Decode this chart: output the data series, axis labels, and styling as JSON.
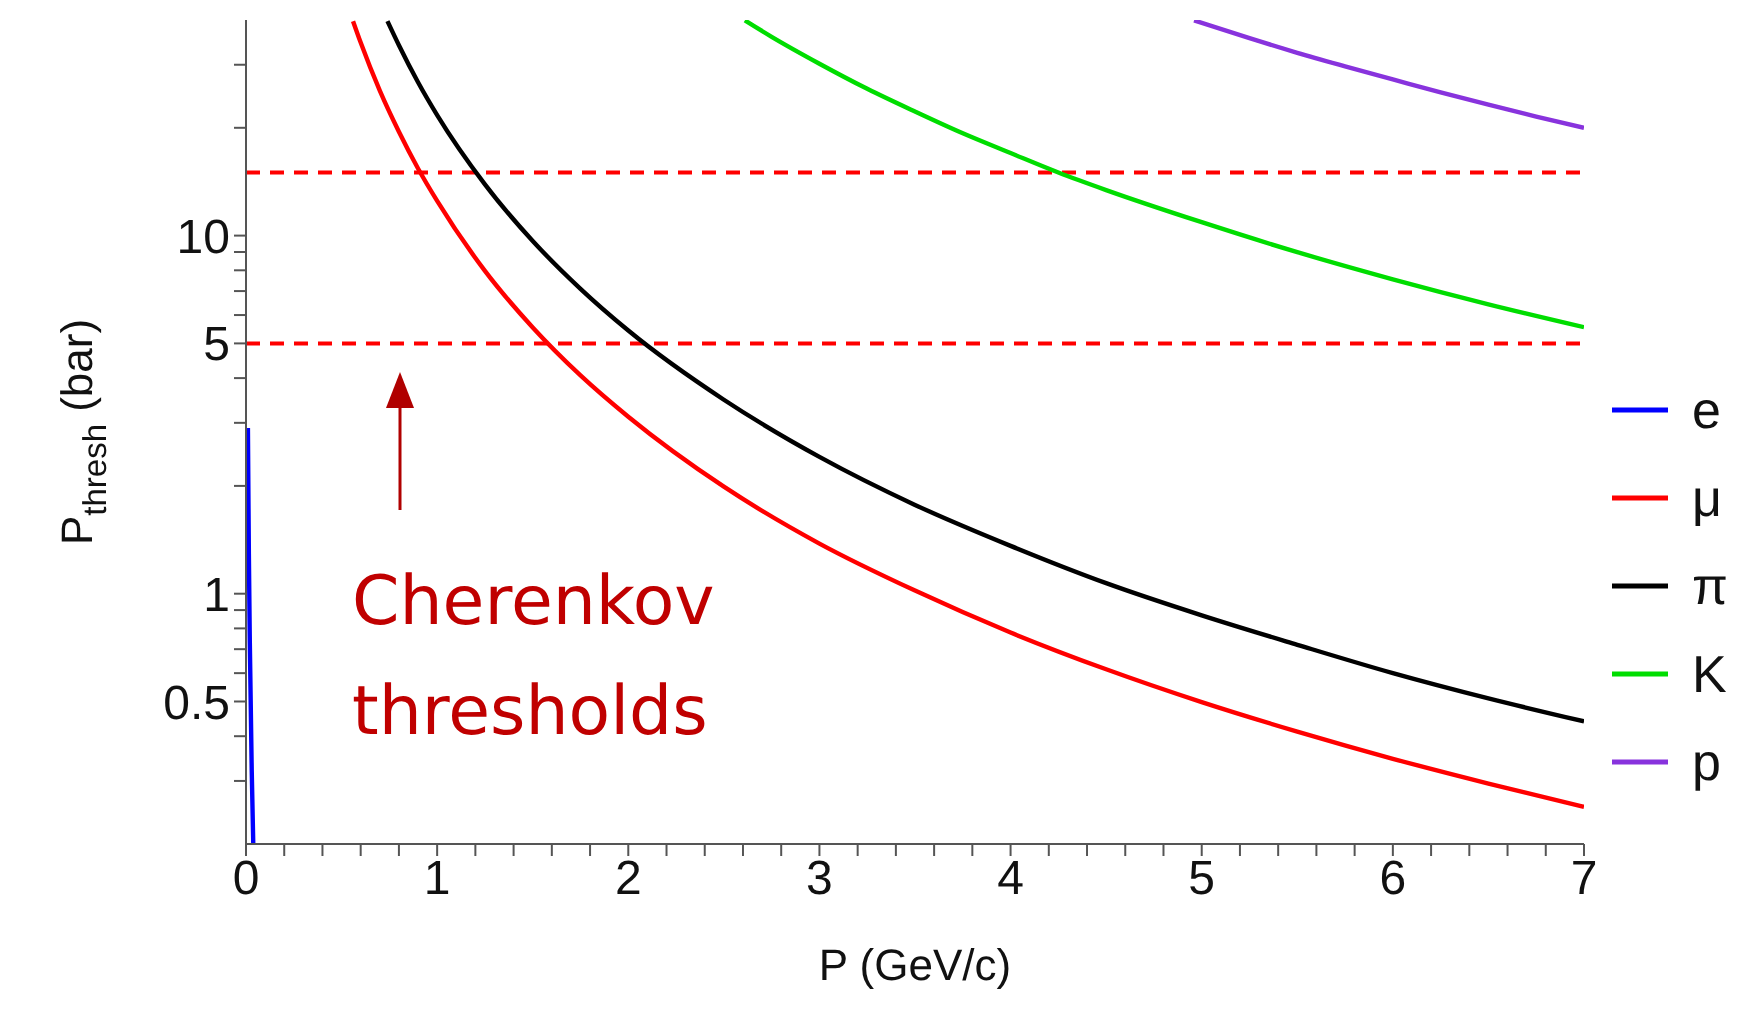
{
  "chart_data": {
    "type": "line",
    "xlabel": "P (GeV/c)",
    "ylabel": "P$_{thresh}$ (bar)",
    "log": "y",
    "xlim": [
      0,
      7
    ],
    "ylim": [
      0.2,
      40
    ],
    "xticks": [
      0,
      {
        "value": 0.2,
        "label": null
      },
      {
        "value": 0.4,
        "label": null
      },
      {
        "value": 0.6,
        "label": null
      },
      {
        "value": 0.8,
        "label": null
      },
      1,
      {
        "value": 1.2,
        "label": null
      },
      {
        "value": 1.4,
        "label": null
      },
      {
        "value": 1.6,
        "label": null
      },
      {
        "value": 1.8,
        "label": null
      },
      2,
      {
        "value": 2.2,
        "label": null
      },
      {
        "value": 2.4,
        "label": null
      },
      {
        "value": 2.6,
        "label": null
      },
      {
        "value": 2.8,
        "label": null
      },
      3,
      {
        "value": 3.2,
        "label": null
      },
      {
        "value": 3.4,
        "label": null
      },
      {
        "value": 3.6,
        "label": null
      },
      {
        "value": 3.8,
        "label": null
      },
      4,
      {
        "value": 4.2,
        "label": null
      },
      {
        "value": 4.4,
        "label": null
      },
      {
        "value": 4.6,
        "label": null
      },
      {
        "value": 4.8,
        "label": null
      },
      5,
      {
        "value": 5.2,
        "label": null
      },
      {
        "value": 5.4,
        "label": null
      },
      {
        "value": 5.6,
        "label": null
      },
      {
        "value": 5.8,
        "label": null
      },
      6,
      {
        "value": 6.2,
        "label": null
      },
      {
        "value": 6.4,
        "label": null
      },
      {
        "value": 6.6,
        "label": null
      },
      {
        "value": 6.8,
        "label": null
      },
      7
    ],
    "yticks": [
      {
        "value": 0.3,
        "label": null
      },
      {
        "value": 0.4,
        "label": null
      },
      0.5,
      {
        "value": 0.6,
        "label": null
      },
      {
        "value": 0.7,
        "label": null
      },
      {
        "value": 0.8,
        "label": null
      },
      {
        "value": 0.9,
        "label": null
      },
      1,
      {
        "value": 2,
        "label": null
      },
      {
        "value": 3,
        "label": null
      },
      {
        "value": 4,
        "label": null
      },
      5,
      {
        "value": 6,
        "label": null
      },
      {
        "value": 7,
        "label": null
      },
      {
        "value": 8,
        "label": null
      },
      {
        "value": 9,
        "label": null
      },
      10,
      {
        "value": 20,
        "label": null
      },
      {
        "value": 30,
        "label": null
      }
    ],
    "grid": false,
    "legend": "right",
    "marker": "none",
    "line_style": "solid",
    "series": [
      {
        "name": "e",
        "color": "#0000ff",
        "x": [
          0.01,
          0.015,
          0.02,
          0.03,
          0.038
        ],
        "values": [
          2.9,
          1.29,
          0.73,
          0.32,
          0.2
        ]
      },
      {
        "name": "μ",
        "color": "#ff0000",
        "x": [
          0.56,
          0.6,
          0.7,
          0.8,
          0.9,
          1,
          1.25,
          1.5,
          1.75,
          2,
          2.5,
          3,
          3.5,
          4,
          4.5,
          5,
          5.5,
          6,
          6.5,
          7
        ],
        "values": [
          39.7,
          34.6,
          25.4,
          19.5,
          15.4,
          12.5,
          7.97,
          5.54,
          4.07,
          3.12,
          1.99,
          1.38,
          1.02,
          0.779,
          0.615,
          0.498,
          0.412,
          0.346,
          0.295,
          0.254
        ]
      },
      {
        "name": "π",
        "color": "#000000",
        "x": [
          0.74,
          0.8,
          0.9,
          1,
          1.25,
          1.5,
          1.75,
          2,
          2.5,
          3,
          3.5,
          4,
          4.5,
          5,
          5.5,
          6,
          6.5,
          7
        ],
        "values": [
          39.7,
          34,
          26.8,
          21.7,
          13.9,
          9.66,
          7.1,
          5.43,
          3.48,
          2.41,
          1.77,
          1.36,
          1.07,
          0.87,
          0.72,
          0.6,
          0.51,
          0.44
        ]
      },
      {
        "name": "K",
        "color": "#00dd00",
        "x": [
          2.61,
          2.75,
          3,
          3.25,
          3.5,
          3.75,
          4,
          4.25,
          4.5,
          5,
          5.5,
          6,
          6.5,
          7
        ],
        "values": [
          39.9,
          35.9,
          30.2,
          25.7,
          22.2,
          19.3,
          17,
          15,
          13.4,
          10.9,
          8.99,
          7.55,
          6.43,
          5.55
        ]
      },
      {
        "name": "p",
        "color": "#8833dd",
        "x": [
          4.96,
          5.25,
          5.5,
          5.75,
          6,
          6.25,
          6.5,
          6.75,
          7
        ],
        "values": [
          39.9,
          35.6,
          32.4,
          29.7,
          27.3,
          25.1,
          23.2,
          21.5,
          20
        ]
      }
    ],
    "ref_lines": [
      {
        "axis": "y",
        "value": 15,
        "color": "#ff0000",
        "line_style": "dashed"
      },
      {
        "axis": "y",
        "value": 5,
        "color": "#ff0000",
        "line_style": "dashed"
      }
    ],
    "annotations": [
      "Cherenkov thresholds"
    ]
  }
}
